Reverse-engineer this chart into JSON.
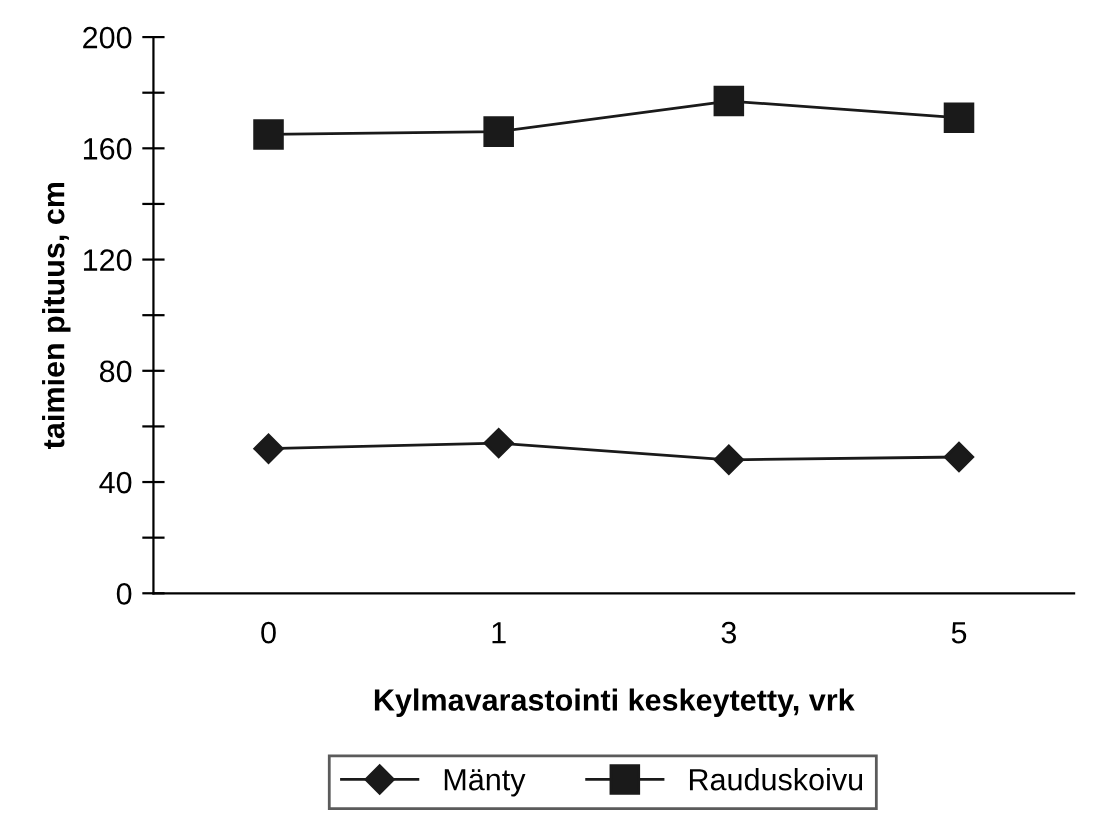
{
  "chart_data": {
    "type": "line",
    "xlabel": "Kylmavarastointi keskeytetty, vrk",
    "ylabel": "taimien pituus, cm",
    "categories": [
      "0",
      "1",
      "3",
      "5"
    ],
    "series": [
      {
        "name": "Mänty",
        "color": "#1a1a1a",
        "values": [
          52,
          54,
          48,
          49
        ],
        "marker": "diamond"
      },
      {
        "name": "Rauduskoivu",
        "color": "#1a1a1a",
        "values": [
          165,
          166,
          177,
          171
        ],
        "marker": "square"
      }
    ],
    "ylim": [
      0,
      200
    ],
    "yticks": [
      0,
      {
        "value": 20,
        "label": null
      },
      40,
      {
        "value": 60,
        "label": null
      },
      80,
      {
        "value": 100,
        "label": null
      },
      120,
      {
        "value": 140,
        "label": null
      },
      160,
      {
        "value": 180,
        "label": null
      },
      200
    ],
    "grid": false,
    "legend": "bottom",
    "line_style": "solid"
  }
}
